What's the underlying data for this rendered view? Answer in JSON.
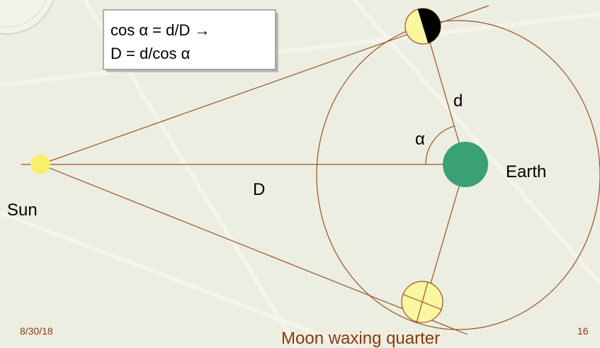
{
  "formula": {
    "line1": "cos α = d/D  →",
    "line2": "D = d/cos α"
  },
  "labels": {
    "d": "d",
    "alpha": "α",
    "earth": "Earth",
    "D": "D",
    "sun": "Sun",
    "moon": "Moon waxing quarter"
  },
  "footer": {
    "date": "8/30/18",
    "page": "16"
  }
}
